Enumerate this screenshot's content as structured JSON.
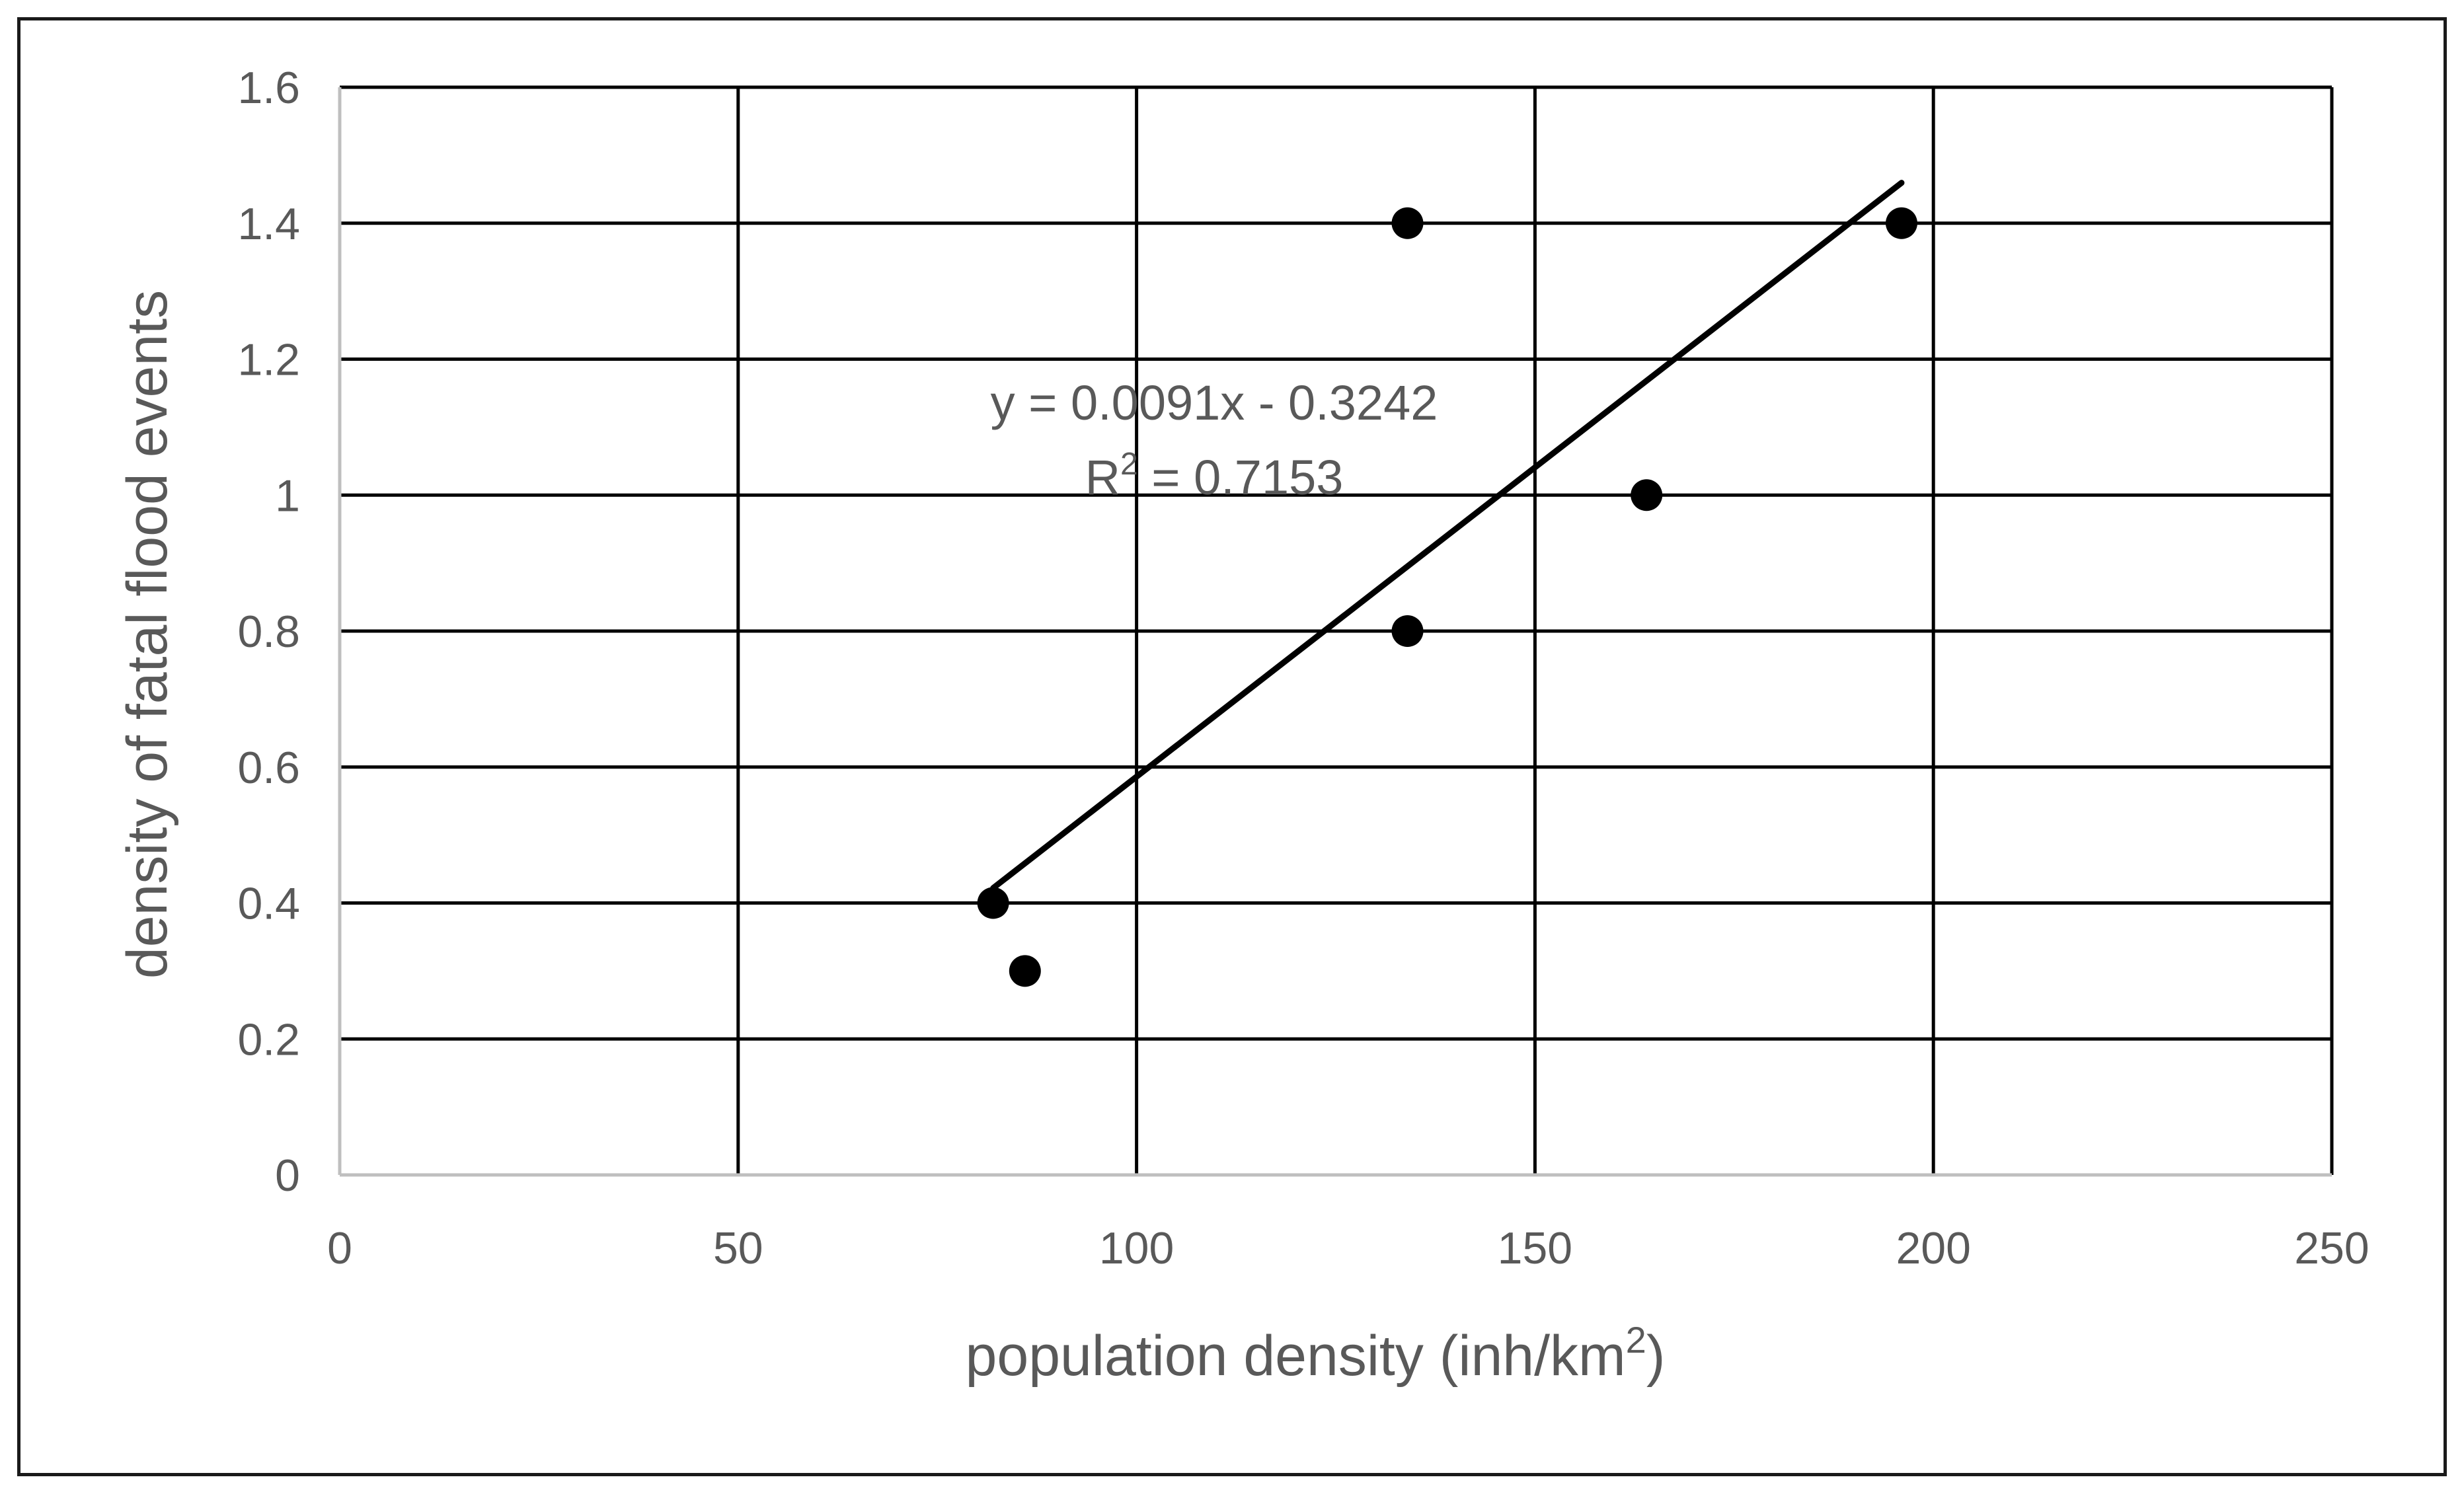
{
  "chart_data": {
    "type": "scatter",
    "title": "",
    "xlabel_base": "population density (inh/km",
    "xlabel_sup": "2",
    "xlabel_tail": ")",
    "ylabel": "density of fatal flood events",
    "xlim": [
      0,
      250
    ],
    "ylim": [
      0,
      1.6
    ],
    "x_ticks": [
      0,
      50,
      100,
      150,
      200,
      250
    ],
    "y_ticks": [
      0,
      0.2,
      0.4,
      0.6,
      0.8,
      1,
      1.2,
      1.4,
      1.6
    ],
    "x_tick_labels": [
      "0",
      "50",
      "100",
      "150",
      "200",
      "250"
    ],
    "y_tick_labels": [
      "0",
      "0.2",
      "0.4",
      "0.6",
      "0.8",
      "1",
      "1.2",
      "1.4",
      "1.6"
    ],
    "grid": true,
    "points": [
      {
        "x": 82,
        "y": 0.4
      },
      {
        "x": 86,
        "y": 0.3
      },
      {
        "x": 134,
        "y": 1.4
      },
      {
        "x": 134,
        "y": 0.8
      },
      {
        "x": 164,
        "y": 1.0
      },
      {
        "x": 196,
        "y": 1.4
      }
    ],
    "trendline": {
      "slope": 0.0091,
      "intercept": -0.3242,
      "x_range": [
        82,
        196
      ],
      "equation": "y = 0.0091x  - 0.3242",
      "r2_base": "R",
      "r2_sup": "2",
      "r2_tail": " = 0.7153"
    },
    "colors": {
      "grid": "#000000",
      "axis": "#bfbfbf",
      "point": "#000000",
      "trendline": "#000000"
    }
  }
}
